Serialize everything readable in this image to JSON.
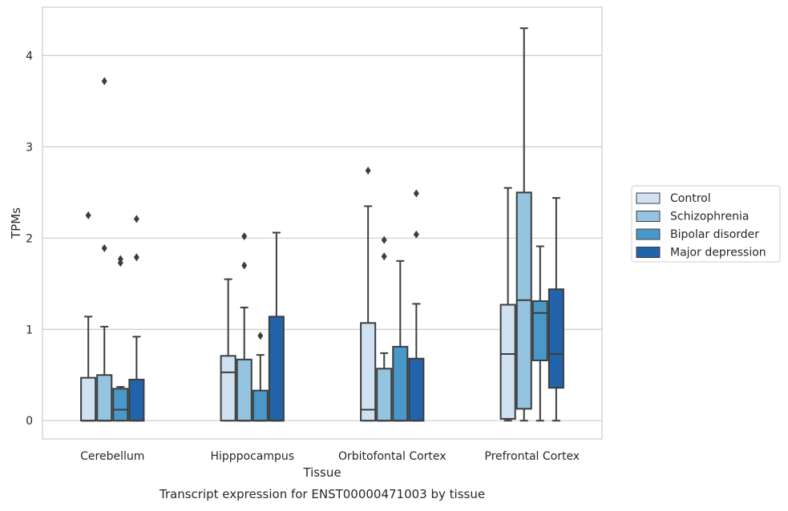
{
  "chart_data": {
    "type": "boxplot",
    "title": "",
    "caption": "Transcript expression for ENST00000471003 by tissue",
    "xlabel": "Tissue",
    "ylabel": "TPMs",
    "ylim": [
      -0.2,
      4.53
    ],
    "yticks": [
      0,
      1,
      2,
      3,
      4
    ],
    "ytick_labels": [
      "0",
      "1",
      "2",
      "3",
      "4"
    ],
    "grid": "horizontal",
    "legend_position": "right",
    "categories": [
      "Cerebellum",
      "Hipppocampus",
      "Orbitofontal Cortex",
      "Prefrontal Cortex"
    ],
    "series": [
      {
        "name": "Control",
        "color": "#d0e1f2",
        "boxes": [
          {
            "whislo": 0,
            "q1": 0,
            "med": 0,
            "q3": 0.47,
            "whishi": 1.14,
            "fliers": [
              2.25
            ]
          },
          {
            "whislo": 0,
            "q1": 0,
            "med": 0.53,
            "q3": 0.71,
            "whishi": 1.55,
            "fliers": []
          },
          {
            "whislo": 0,
            "q1": 0,
            "med": 0.12,
            "q3": 1.07,
            "whishi": 2.35,
            "fliers": [
              2.74
            ]
          },
          {
            "whislo": 0,
            "q1": 0.02,
            "med": 0.73,
            "q3": 1.27,
            "whishi": 2.55,
            "fliers": []
          }
        ]
      },
      {
        "name": "Schizophrenia",
        "color": "#94c4df",
        "boxes": [
          {
            "whislo": 0,
            "q1": 0,
            "med": 0,
            "q3": 0.5,
            "whishi": 1.03,
            "fliers": [
              1.89,
              3.72
            ]
          },
          {
            "whislo": 0,
            "q1": 0,
            "med": 0,
            "q3": 0.67,
            "whishi": 1.24,
            "fliers": [
              1.7,
              2.02
            ]
          },
          {
            "whislo": 0,
            "q1": 0,
            "med": 0,
            "q3": 0.57,
            "whishi": 0.74,
            "fliers": [
              1.8,
              1.98
            ]
          },
          {
            "whislo": 0,
            "q1": 0.13,
            "med": 1.32,
            "q3": 2.5,
            "whishi": 4.3,
            "fliers": []
          }
        ]
      },
      {
        "name": "Bipolar disorder",
        "color": "#4a98c9",
        "boxes": [
          {
            "whislo": 0,
            "q1": 0,
            "med": 0.12,
            "q3": 0.35,
            "whishi": 0.37,
            "fliers": [
              1.73,
              1.77
            ]
          },
          {
            "whislo": 0,
            "q1": 0,
            "med": 0,
            "q3": 0.33,
            "whishi": 0.72,
            "fliers": [
              0.93
            ]
          },
          {
            "whislo": 0,
            "q1": 0,
            "med": 0,
            "q3": 0.81,
            "whishi": 1.75,
            "fliers": []
          },
          {
            "whislo": 0,
            "q1": 0.66,
            "med": 1.18,
            "q3": 1.31,
            "whishi": 1.91,
            "fliers": []
          }
        ]
      },
      {
        "name": "Major depression",
        "color": "#2164ab",
        "boxes": [
          {
            "whislo": 0,
            "q1": 0,
            "med": 0,
            "q3": 0.45,
            "whishi": 0.92,
            "fliers": [
              1.79,
              2.21
            ]
          },
          {
            "whislo": 0,
            "q1": 0,
            "med": 0,
            "q3": 1.14,
            "whishi": 2.06,
            "fliers": []
          },
          {
            "whislo": 0,
            "q1": 0,
            "med": 0,
            "q3": 0.68,
            "whishi": 1.28,
            "fliers": [
              2.04,
              2.49
            ]
          },
          {
            "whislo": 0,
            "q1": 0.36,
            "med": 0.73,
            "q3": 1.44,
            "whishi": 2.44,
            "fliers": []
          }
        ]
      }
    ]
  }
}
